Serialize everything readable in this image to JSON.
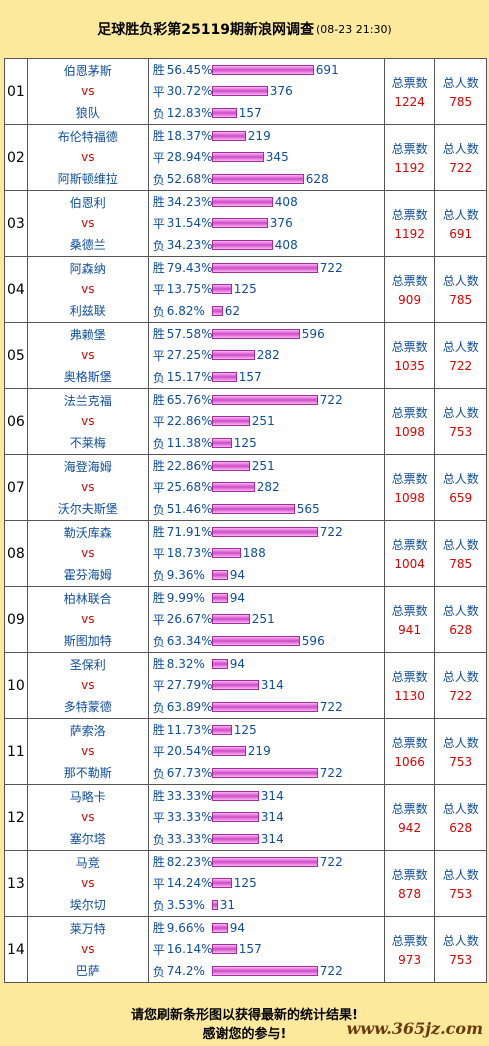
{
  "header": {
    "title": "足球胜负彩第25119期新浪网调查",
    "date": "(08-23 21:30)"
  },
  "labels": {
    "vs": "vs",
    "win": "胜",
    "draw": "平",
    "loss": "负",
    "total_votes": "总票数",
    "total_people": "总人数"
  },
  "matches": [
    {
      "no": "01",
      "home": "伯恩茅斯",
      "away": "狼队",
      "win_pct": "56.45%",
      "win": 691,
      "draw_pct": "30.72%",
      "draw": 376,
      "loss_pct": "12.83%",
      "loss": 157,
      "votes": "1224",
      "people": "785"
    },
    {
      "no": "02",
      "home": "布伦特福德",
      "away": "阿斯顿维拉",
      "win_pct": "18.37%",
      "win": 219,
      "draw_pct": "28.94%",
      "draw": 345,
      "loss_pct": "52.68%",
      "loss": 628,
      "votes": "1192",
      "people": "722"
    },
    {
      "no": "03",
      "home": "伯恩利",
      "away": "桑德兰",
      "win_pct": "34.23%",
      "win": 408,
      "draw_pct": "31.54%",
      "draw": 376,
      "loss_pct": "34.23%",
      "loss": 408,
      "votes": "1192",
      "people": "691"
    },
    {
      "no": "04",
      "home": "阿森纳",
      "away": "利兹联",
      "win_pct": "79.43%",
      "win": 722,
      "draw_pct": "13.75%",
      "draw": 125,
      "loss_pct": "6.82%",
      "loss": 62,
      "votes": "909",
      "people": "785"
    },
    {
      "no": "05",
      "home": "弗赖堡",
      "away": "奥格斯堡",
      "win_pct": "57.58%",
      "win": 596,
      "draw_pct": "27.25%",
      "draw": 282,
      "loss_pct": "15.17%",
      "loss": 157,
      "votes": "1035",
      "people": "722"
    },
    {
      "no": "06",
      "home": "法兰克福",
      "away": "不莱梅",
      "win_pct": "65.76%",
      "win": 722,
      "draw_pct": "22.86%",
      "draw": 251,
      "loss_pct": "11.38%",
      "loss": 125,
      "votes": "1098",
      "people": "753"
    },
    {
      "no": "07",
      "home": "海登海姆",
      "away": "沃尔夫斯堡",
      "win_pct": "22.86%",
      "win": 251,
      "draw_pct": "25.68%",
      "draw": 282,
      "loss_pct": "51.46%",
      "loss": 565,
      "votes": "1098",
      "people": "659"
    },
    {
      "no": "08",
      "home": "勒沃库森",
      "away": "霍芬海姆",
      "win_pct": "71.91%",
      "win": 722,
      "draw_pct": "18.73%",
      "draw": 188,
      "loss_pct": "9.36%",
      "loss": 94,
      "votes": "1004",
      "people": "785"
    },
    {
      "no": "09",
      "home": "柏林联合",
      "away": "斯图加特",
      "win_pct": "9.99%",
      "win": 94,
      "draw_pct": "26.67%",
      "draw": 251,
      "loss_pct": "63.34%",
      "loss": 596,
      "votes": "941",
      "people": "628"
    },
    {
      "no": "10",
      "home": "圣保利",
      "away": "多特蒙德",
      "win_pct": "8.32%",
      "win": 94,
      "draw_pct": "27.79%",
      "draw": 314,
      "loss_pct": "63.89%",
      "loss": 722,
      "votes": "1130",
      "people": "722"
    },
    {
      "no": "11",
      "home": "萨索洛",
      "away": "那不勒斯",
      "win_pct": "11.73%",
      "win": 125,
      "draw_pct": "20.54%",
      "draw": 219,
      "loss_pct": "67.73%",
      "loss": 722,
      "votes": "1066",
      "people": "753"
    },
    {
      "no": "12",
      "home": "马略卡",
      "away": "塞尔塔",
      "win_pct": "33.33%",
      "win": 314,
      "draw_pct": "33.33%",
      "draw": 314,
      "loss_pct": "33.33%",
      "loss": 314,
      "votes": "942",
      "people": "628"
    },
    {
      "no": "13",
      "home": "马竞",
      "away": "埃尔切",
      "win_pct": "82.23%",
      "win": 722,
      "draw_pct": "14.24%",
      "draw": 125,
      "loss_pct": "3.53%",
      "loss": 31,
      "votes": "878",
      "people": "753"
    },
    {
      "no": "14",
      "home": "莱万特",
      "away": "巴萨",
      "win_pct": "9.66%",
      "win": 94,
      "draw_pct": "16.14%",
      "draw": 157,
      "loss_pct": "74.2%",
      "loss": 722,
      "votes": "973",
      "people": "753"
    }
  ],
  "footer": {
    "line1": "请您刷新条形图以获得最新的统计结果!",
    "line2": "感谢您的参与!"
  },
  "watermark": "www.365jz.com",
  "colors": {
    "background": "#fde99c",
    "team": "#0d4d9c",
    "vs": "#dd0000",
    "bar": "#d248c9"
  }
}
